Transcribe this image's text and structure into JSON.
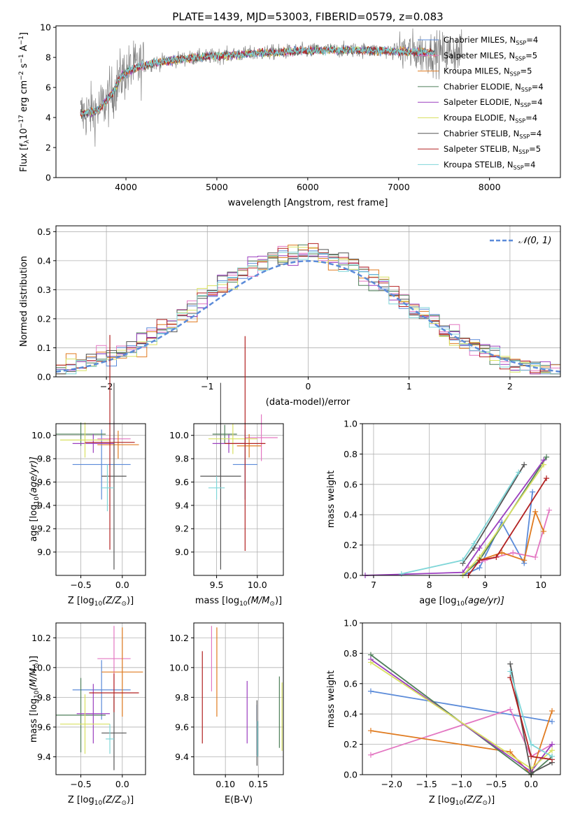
{
  "chart_data": [
    {
      "type": "line",
      "title": "PLATE=1439, MJD=53003, FIBERID=0579, z=0.083",
      "xlabel": "wavelength [Angstrom, rest frame]",
      "ylabel_main": "Flux [f",
      "ylabel_sub1": "λ",
      "ylabel_mid": "10",
      "ylabel_sup1": "−17",
      "ylabel_mid2": " erg cm",
      "ylabel_sup2": "−2",
      "ylabel_mid3": " s",
      "ylabel_sup3": "−1",
      "ylabel_mid4": " A",
      "ylabel_sup4": "−1",
      "ylabel_end": "]",
      "xlim": [
        3230,
        8780
      ],
      "ylim": [
        0,
        10.1
      ],
      "xticks": [
        4000,
        5000,
        6000,
        7000,
        8000
      ],
      "yticks": [
        0,
        2,
        4,
        6,
        8,
        10
      ],
      "grid": false,
      "legend_position": "top-right",
      "series": [
        {
          "name": "Chabrier MILES, N",
          "sub": "SSP",
          "tail": "=4",
          "color": "#5b8bd9"
        },
        {
          "name": "Salpeter MILES, N",
          "sub": "SSP",
          "tail": "=5",
          "color": "#e377c2"
        },
        {
          "name": "Kroupa MILES, N",
          "sub": "SSP",
          "tail": "=5",
          "color": "#e07b20"
        },
        {
          "name": "Chabrier ELODIE, N",
          "sub": "SSP",
          "tail": "=4",
          "color": "#4f7f5a"
        },
        {
          "name": "Salpeter ELODIE, N",
          "sub": "SSP",
          "tail": "=4",
          "color": "#9b3fbf"
        },
        {
          "name": "Kroupa ELODIE, N",
          "sub": "SSP",
          "tail": "=4",
          "color": "#d8e060"
        },
        {
          "name": "Chabrier STELIB, N",
          "sub": "SSP",
          "tail": "=4",
          "color": "#555555"
        },
        {
          "name": "Salpeter STELIB, N",
          "sub": "SSP",
          "tail": "=5",
          "color": "#b22222"
        },
        {
          "name": "Kroupa STELIB, N",
          "sub": "SSP",
          "tail": "=4",
          "color": "#7fd6d8"
        }
      ],
      "continuum_points": [
        [
          3500,
          4.2
        ],
        [
          3700,
          4.5
        ],
        [
          3850,
          5.6
        ],
        [
          3950,
          6.8
        ],
        [
          4100,
          7.3
        ],
        [
          4300,
          7.6
        ],
        [
          4600,
          7.9
        ],
        [
          5000,
          8.1
        ],
        [
          5500,
          8.3
        ],
        [
          6000,
          8.45
        ],
        [
          6500,
          8.5
        ],
        [
          7000,
          8.4
        ],
        [
          7400,
          8.3
        ]
      ],
      "observed_x_range": [
        3500,
        7700
      ]
    },
    {
      "type": "histogram",
      "xlabel": "(data-model)/error",
      "ylabel": "Normed distribution",
      "xlim": [
        -2.5,
        2.5
      ],
      "ylim": [
        0,
        0.52
      ],
      "xticks": [
        -2,
        -1,
        0,
        1,
        2
      ],
      "xtick_labels": [
        "−2",
        "−1",
        "0",
        "1",
        "2"
      ],
      "yticks": [
        0.0,
        0.1,
        0.2,
        0.3,
        0.4,
        0.5
      ],
      "ytick_labels": [
        "0.0",
        "0.1",
        "0.2",
        "0.3",
        "0.4",
        "0.5"
      ],
      "grid": true,
      "legend_position": "top-right",
      "legend_label": "𝒩(0, 1)",
      "bin_width": 0.1
    },
    {
      "type": "scatter",
      "xlabel": "Z [log",
      "xlabel_sub": "10",
      "xlabel_tail": "(Z/Z",
      "xlabel_sub2": "⊙",
      "xlabel_end": ")]",
      "ylabel": "age  [log",
      "ylabel_sub": "10",
      "ylabel_tail": "(age/yr)]",
      "xlim": [
        -0.8,
        0.28
      ],
      "ylim": [
        8.8,
        10.1
      ],
      "xticks": [
        -0.5,
        0.0
      ],
      "xtick_labels": [
        "−0.5",
        "0.0"
      ],
      "yticks": [
        9.0,
        9.2,
        9.4,
        9.6,
        9.8,
        10.0
      ],
      "ytick_labels": [
        "9.0",
        "9.2",
        "9.4",
        "9.6",
        "9.8",
        "10.0"
      ],
      "grid": true
    },
    {
      "type": "scatter",
      "xlabel": "mass [log",
      "xlabel_sub": "10",
      "xlabel_tail": "(M/M",
      "xlabel_sub2": "⊙",
      "xlabel_end": ")]",
      "xlim": [
        9.22,
        10.32
      ],
      "ylim": [
        8.8,
        10.1
      ],
      "xticks": [
        9.5,
        10.0
      ],
      "xtick_labels": [
        "9.5",
        "10.0"
      ],
      "yticks": [
        9.0,
        9.2,
        9.4,
        9.6,
        9.8,
        10.0
      ],
      "ytick_labels": [
        "9.0",
        "9.2",
        "9.4",
        "9.6",
        "9.8",
        "10.0"
      ],
      "grid": true
    },
    {
      "type": "line",
      "xlabel": "age  [log",
      "xlabel_sub": "10",
      "xlabel_tail": "(age/yr)]",
      "ylabel": "mass weight",
      "xlim": [
        6.8,
        10.35
      ],
      "ylim": [
        0,
        1
      ],
      "xticks": [
        7,
        8,
        9,
        10
      ],
      "xtick_labels": [
        "7",
        "8",
        "9",
        "10"
      ],
      "yticks": [
        0.0,
        0.2,
        0.4,
        0.6,
        0.8,
        1.0
      ],
      "ytick_labels": [
        "0.0",
        "0.2",
        "0.4",
        "0.6",
        "0.8",
        "1.0"
      ],
      "grid": true,
      "series": [
        {
          "color": "#5b8bd9",
          "points": [
            [
              8.6,
              0.0
            ],
            [
              8.9,
              0.05
            ],
            [
              9.3,
              0.35
            ],
            [
              9.7,
              0.08
            ],
            [
              9.85,
              0.55
            ]
          ]
        },
        {
          "color": "#e377c2",
          "points": [
            [
              8.7,
              0.05
            ],
            [
              9.0,
              0.1
            ],
            [
              9.5,
              0.15
            ],
            [
              9.9,
              0.12
            ],
            [
              10.15,
              0.43
            ]
          ]
        },
        {
          "color": "#e07b20",
          "points": [
            [
              8.9,
              0.1
            ],
            [
              9.3,
              0.15
            ],
            [
              9.7,
              0.1
            ],
            [
              9.9,
              0.42
            ],
            [
              10.05,
              0.29
            ]
          ]
        },
        {
          "color": "#4f7f5a",
          "points": [
            [
              8.6,
              0.0
            ],
            [
              8.9,
              0.1
            ],
            [
              10.1,
              0.78
            ]
          ]
        },
        {
          "color": "#9b3fbf",
          "points": [
            [
              6.85,
              0.0
            ],
            [
              8.6,
              0.02
            ],
            [
              8.9,
              0.18
            ],
            [
              10.05,
              0.76
            ]
          ]
        },
        {
          "color": "#d8e060",
          "points": [
            [
              8.6,
              0.0
            ],
            [
              8.9,
              0.12
            ],
            [
              10.05,
              0.73
            ]
          ]
        },
        {
          "color": "#555555",
          "points": [
            [
              8.6,
              0.08
            ],
            [
              8.8,
              0.18
            ],
            [
              9.7,
              0.73
            ]
          ]
        },
        {
          "color": "#b22222",
          "points": [
            [
              8.7,
              0.0
            ],
            [
              8.9,
              0.1
            ],
            [
              9.2,
              0.12
            ],
            [
              10.1,
              0.64
            ]
          ]
        },
        {
          "color": "#7fd6d8",
          "points": [
            [
              7.5,
              0.01
            ],
            [
              8.6,
              0.1
            ],
            [
              8.8,
              0.21
            ],
            [
              9.6,
              0.68
            ]
          ]
        }
      ]
    },
    {
      "type": "scatter",
      "xlabel": "Z [log",
      "xlabel_sub": "10",
      "xlabel_tail": "(Z/Z",
      "xlabel_sub2": "⊙",
      "xlabel_end": ")]",
      "ylabel": "mass [log",
      "ylabel_sub": "10",
      "ylabel_tail": "(M/M",
      "ylabel_sub2": "⊙",
      "ylabel_end": ")]",
      "xlim": [
        -0.8,
        0.28
      ],
      "ylim": [
        9.28,
        10.3
      ],
      "xticks": [
        -0.5,
        0.0
      ],
      "xtick_labels": [
        "−0.5",
        "0.0"
      ],
      "yticks": [
        9.4,
        9.6,
        9.8,
        10.0,
        10.2
      ],
      "ytick_labels": [
        "9.4",
        "9.6",
        "9.8",
        "10.0",
        "10.2"
      ],
      "grid": true
    },
    {
      "type": "scatter",
      "xlabel": "E(B-V)",
      "xlim": [
        0.052,
        0.188
      ],
      "ylim": [
        9.28,
        10.3
      ],
      "xticks": [
        0.1,
        0.15
      ],
      "xtick_labels": [
        "0.10",
        "0.15"
      ],
      "yticks": [
        9.4,
        9.6,
        9.8,
        10.0,
        10.2
      ],
      "ytick_labels": [
        "9.4",
        "9.6",
        "9.8",
        "10.0",
        "10.2"
      ],
      "grid": true
    },
    {
      "type": "line",
      "xlabel": "Z [log",
      "xlabel_sub": "10",
      "xlabel_tail": "(Z/Z",
      "xlabel_sub2": "⊙",
      "xlabel_end": ")]",
      "ylabel": "mass weight",
      "xlim": [
        -2.42,
        0.42
      ],
      "ylim": [
        0,
        1
      ],
      "xticks": [
        -2.0,
        -1.5,
        -1.0,
        -0.5,
        0.0
      ],
      "xtick_labels": [
        "−2.0",
        "−1.5",
        "−1.0",
        "−0.5",
        "0.0"
      ],
      "yticks": [
        0.0,
        0.2,
        0.4,
        0.6,
        0.8,
        1.0
      ],
      "ytick_labels": [
        "0.0",
        "0.2",
        "0.4",
        "0.6",
        "0.8",
        "1.0"
      ],
      "grid": true,
      "series": [
        {
          "color": "#5b8bd9",
          "points": [
            [
              -2.3,
              0.55
            ],
            [
              0.3,
              0.35
            ]
          ]
        },
        {
          "color": "#e377c2",
          "points": [
            [
              -2.3,
              0.13
            ],
            [
              -0.3,
              0.43
            ],
            [
              0.0,
              0.12
            ],
            [
              0.3,
              0.2
            ]
          ]
        },
        {
          "color": "#e07b20",
          "points": [
            [
              -2.3,
              0.29
            ],
            [
              -0.3,
              0.15
            ],
            [
              0.0,
              0.0
            ],
            [
              0.3,
              0.42
            ]
          ]
        },
        {
          "color": "#4f7f5a",
          "points": [
            [
              -2.3,
              0.79
            ],
            [
              0.0,
              0.0
            ],
            [
              0.3,
              0.12
            ]
          ]
        },
        {
          "color": "#9b3fbf",
          "points": [
            [
              -2.3,
              0.76
            ],
            [
              0.0,
              0.02
            ],
            [
              0.3,
              0.2
            ]
          ]
        },
        {
          "color": "#d8e060",
          "points": [
            [
              -2.3,
              0.74
            ],
            [
              0.0,
              0.04
            ],
            [
              0.3,
              0.16
            ]
          ]
        },
        {
          "color": "#555555",
          "points": [
            [
              -0.3,
              0.73
            ],
            [
              0.0,
              0.01
            ],
            [
              0.3,
              0.08
            ]
          ]
        },
        {
          "color": "#b22222",
          "points": [
            [
              -0.3,
              0.64
            ],
            [
              0.0,
              0.12
            ],
            [
              0.3,
              0.1
            ]
          ]
        },
        {
          "color": "#7fd6d8",
          "points": [
            [
              -0.3,
              0.68
            ],
            [
              0.0,
              0.2
            ],
            [
              0.3,
              0.12
            ]
          ]
        }
      ]
    }
  ]
}
